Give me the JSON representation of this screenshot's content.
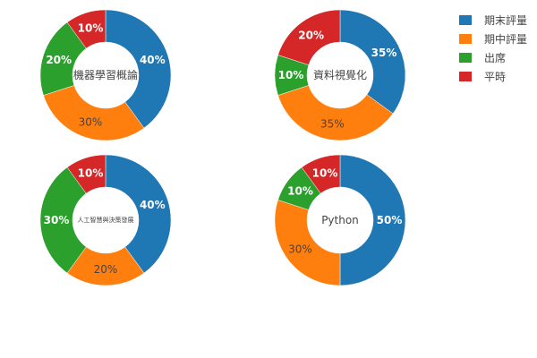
{
  "chart_data": {
    "type": "pie",
    "legend_position": "top-right",
    "categories": [
      "期末評量",
      "期中評量",
      "出席",
      "平時"
    ],
    "colors": [
      "#1f77b4",
      "#ff7f0e",
      "#2ca02c",
      "#d62728"
    ],
    "charts": [
      {
        "title": "機器學習概論",
        "values": [
          40,
          30,
          20,
          10
        ],
        "labels": [
          "40%",
          "30%",
          "20%",
          "10%"
        ]
      },
      {
        "title": "資料視覺化",
        "values": [
          35,
          35,
          10,
          20
        ],
        "labels": [
          "35%",
          "35%",
          "10%",
          "20%"
        ]
      },
      {
        "title": "人工智慧與決策發展",
        "values": [
          40,
          20,
          30,
          10
        ],
        "labels": [
          "40%",
          "20%",
          "30%",
          "10%"
        ]
      },
      {
        "title": "Python",
        "values": [
          50,
          30,
          10,
          10
        ],
        "labels": [
          "50%",
          "30%",
          "10%",
          "10%"
        ]
      }
    ]
  }
}
